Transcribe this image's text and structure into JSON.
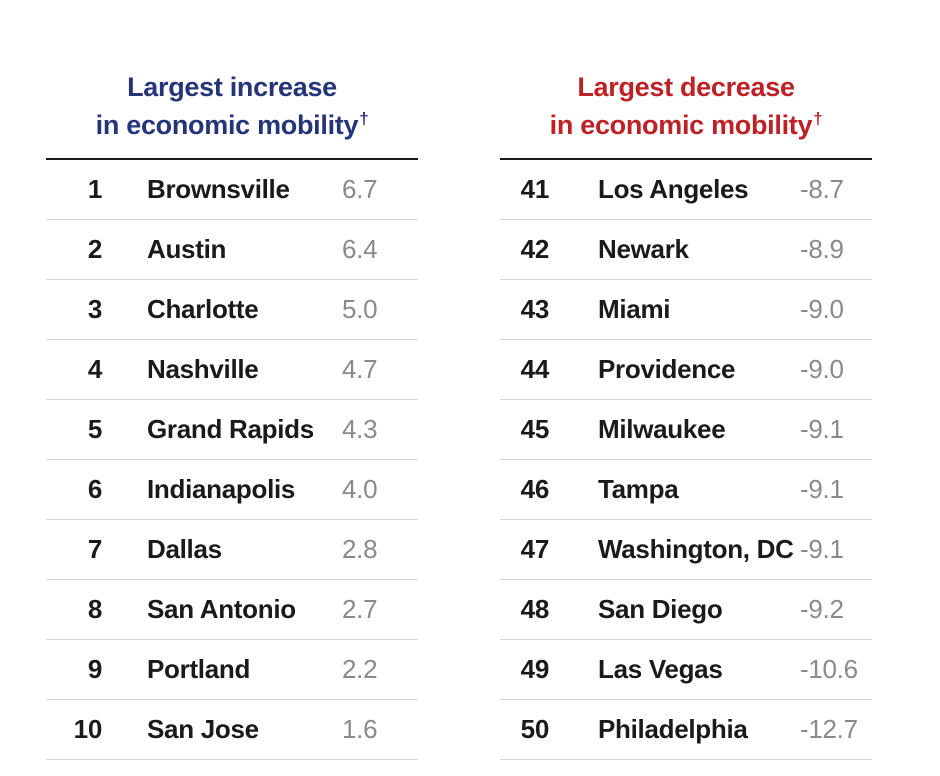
{
  "increase": {
    "title_line1": "Largest increase",
    "title_line2": "in economic mobility",
    "dagger": "†",
    "color": "#263479",
    "rows": [
      {
        "rank": "1",
        "city": "Brownsville",
        "value": "6.7"
      },
      {
        "rank": "2",
        "city": "Austin",
        "value": "6.4"
      },
      {
        "rank": "3",
        "city": "Charlotte",
        "value": "5.0"
      },
      {
        "rank": "4",
        "city": "Nashville",
        "value": "4.7"
      },
      {
        "rank": "5",
        "city": "Grand Rapids",
        "value": "4.3"
      },
      {
        "rank": "6",
        "city": "Indianapolis",
        "value": "4.0"
      },
      {
        "rank": "7",
        "city": "Dallas",
        "value": "2.8"
      },
      {
        "rank": "8",
        "city": "San Antonio",
        "value": "2.7"
      },
      {
        "rank": "9",
        "city": "Portland",
        "value": "2.2"
      },
      {
        "rank": "10",
        "city": "San Jose",
        "value": "1.6"
      }
    ]
  },
  "decrease": {
    "title_line1": "Largest decrease",
    "title_line2": "in economic mobility",
    "dagger": "†",
    "color": "#bd2126",
    "rows": [
      {
        "rank": "41",
        "city": "Los Angeles",
        "value": "-8.7"
      },
      {
        "rank": "42",
        "city": "Newark",
        "value": "-8.9"
      },
      {
        "rank": "43",
        "city": "Miami",
        "value": "-9.0"
      },
      {
        "rank": "44",
        "city": "Providence",
        "value": "-9.0"
      },
      {
        "rank": "45",
        "city": "Milwaukee",
        "value": "-9.1"
      },
      {
        "rank": "46",
        "city": "Tampa",
        "value": "-9.1"
      },
      {
        "rank": "47",
        "city": "Washington, DC",
        "value": "-9.1"
      },
      {
        "rank": "48",
        "city": "San Diego",
        "value": "-9.2"
      },
      {
        "rank": "49",
        "city": "Las Vegas",
        "value": "-10.6"
      },
      {
        "rank": "50",
        "city": "Philadelphia",
        "value": "-12.7"
      }
    ]
  }
}
